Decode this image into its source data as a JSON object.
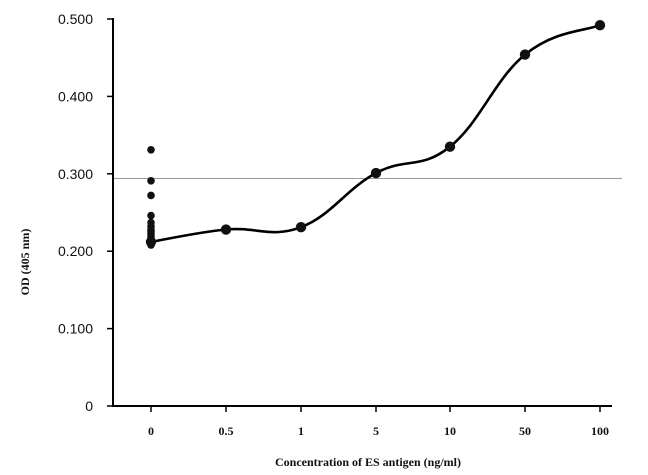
{
  "chart_data": {
    "type": "line",
    "xlabel": "Concentration of ES antigen (ng/ml)",
    "ylabel": "OD (405 nm)",
    "categories": [
      "0",
      "0.5",
      "1",
      "5",
      "10",
      "50",
      "100"
    ],
    "values": [
      0.212,
      0.228,
      0.231,
      0.301,
      0.335,
      0.454,
      0.492
    ],
    "negative_control_points": {
      "category": "0",
      "values": [
        0.331,
        0.291,
        0.272,
        0.246,
        0.237,
        0.232,
        0.228,
        0.225,
        0.222,
        0.219,
        0.216,
        0.214,
        0.211,
        0.208
      ]
    },
    "reference_line": {
      "value": 0.294
    },
    "ylim": [
      0,
      0.5
    ],
    "yticks": [
      {
        "value": 0,
        "label": "0"
      },
      {
        "value": 0.1,
        "label": "0.100"
      },
      {
        "value": 0.2,
        "label": "0.200"
      },
      {
        "value": 0.3,
        "label": "0.300"
      },
      {
        "value": 0.4,
        "label": "0.400"
      },
      {
        "value": 0.5,
        "label": "0.500"
      }
    ],
    "grid": false,
    "colors": {
      "line": "#000000",
      "markers": "#111111",
      "reference_line": "#9a9a9a"
    }
  }
}
